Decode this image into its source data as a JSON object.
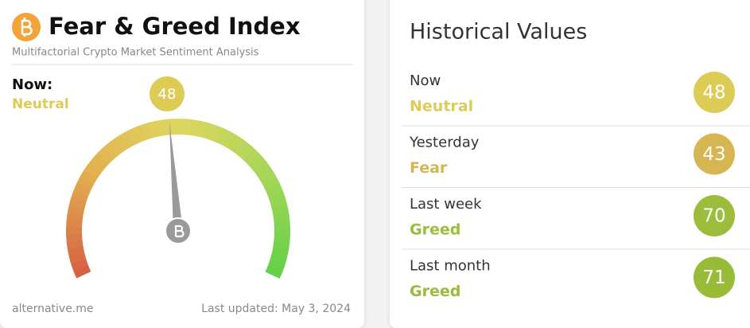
{
  "header": {
    "title": "Fear & Greed Index",
    "subtitle": "Multifactorial Crypto Market Sentiment Analysis"
  },
  "gauge": {
    "label": "Now:",
    "classification": "Neutral",
    "value": 48,
    "color": "#dccb55",
    "range": [
      0,
      100
    ]
  },
  "footer": {
    "source": "alternative.me",
    "updated": "Last updated: May 3, 2024"
  },
  "history": {
    "title": "Historical Values",
    "rows": [
      {
        "period": "Now",
        "classification": "Neutral",
        "value": 48,
        "color": "#dccb55"
      },
      {
        "period": "Yesterday",
        "classification": "Fear",
        "value": 43,
        "color": "#d6b652"
      },
      {
        "period": "Last week",
        "classification": "Greed",
        "value": 70,
        "color": "#9cbd3b"
      },
      {
        "period": "Last month",
        "classification": "Greed",
        "value": 71,
        "color": "#98bb38"
      }
    ]
  }
}
